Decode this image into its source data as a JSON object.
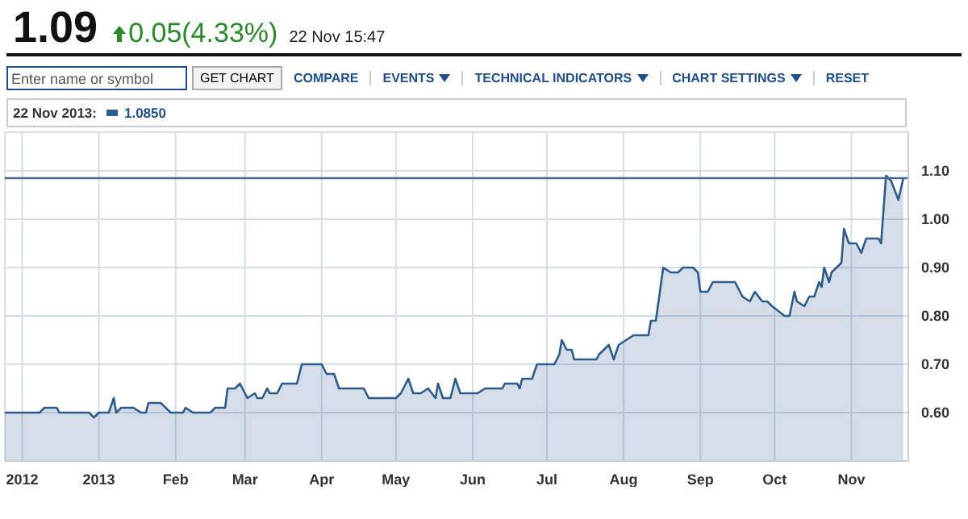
{
  "chart_data": {
    "type": "area",
    "title": "1.09",
    "subtitle": "0.05(4.33%)",
    "annotations": [
      "22 Nov 15:47",
      "Enter name or symbol",
      "GET CHART",
      "COMPARE",
      "EVENTS",
      "TECHNICAL INDICATORS",
      "CHART SETTINGS",
      "RESET",
      "22 Nov 2013:",
      "1.0850"
    ],
    "x": [
      "2012-11-24",
      "2012-12-07",
      "2012-12-08",
      "2012-12-10",
      "2012-12-15",
      "2012-12-16",
      "2012-12-28",
      "2012-12-30",
      "2013-01-01",
      "2013-01-05",
      "2013-01-07",
      "2013-01-08",
      "2013-01-10",
      "2013-01-15",
      "2013-01-18",
      "2013-01-20",
      "2013-01-21",
      "2013-01-26",
      "2013-01-30",
      "2013-02-04",
      "2013-02-05",
      "2013-02-08",
      "2013-02-15",
      "2013-02-17",
      "2013-02-21",
      "2013-02-22",
      "2013-02-25",
      "2013-02-27",
      "2013-03-02",
      "2013-03-05",
      "2013-03-06",
      "2013-03-08",
      "2013-03-10",
      "2013-03-11",
      "2013-03-14",
      "2013-03-16",
      "2013-03-22",
      "2013-03-24",
      "2013-04-01",
      "2013-04-03",
      "2013-04-06",
      "2013-04-08",
      "2013-04-18",
      "2013-04-20",
      "2013-05-01",
      "2013-05-03",
      "2013-05-06",
      "2013-05-08",
      "2013-05-11",
      "2013-05-14",
      "2013-05-17",
      "2013-05-18",
      "2013-05-20",
      "2013-05-23",
      "2013-05-25",
      "2013-05-27",
      "2013-06-03",
      "2013-06-06",
      "2013-06-13",
      "2013-06-14",
      "2013-06-19",
      "2013-06-20",
      "2013-06-21",
      "2013-06-25",
      "2013-06-27",
      "2013-07-04",
      "2013-07-06",
      "2013-07-07",
      "2013-07-09",
      "2013-07-11",
      "2013-07-12",
      "2013-07-16",
      "2013-07-21",
      "2013-07-22",
      "2013-07-26",
      "2013-07-28",
      "2013-07-30",
      "2013-08-05",
      "2013-08-11",
      "2013-08-12",
      "2013-08-14",
      "2013-08-17",
      "2013-08-20",
      "2013-08-23",
      "2013-08-25",
      "2013-08-29",
      "2013-08-31",
      "2013-09-01",
      "2013-09-04",
      "2013-09-06",
      "2013-09-15",
      "2013-09-18",
      "2013-09-21",
      "2013-09-23",
      "2013-09-26",
      "2013-09-28",
      "2013-09-30",
      "2013-10-05",
      "2013-10-07",
      "2013-10-09",
      "2013-10-10",
      "2013-10-13",
      "2013-10-15",
      "2013-10-17",
      "2013-10-19",
      "2013-10-20",
      "2013-10-21",
      "2013-10-23",
      "2013-10-24",
      "2013-10-28",
      "2013-10-29",
      "2013-10-31",
      "2013-11-03",
      "2013-11-05",
      "2013-11-07",
      "2013-11-12",
      "2013-11-13",
      "2013-11-15",
      "2013-11-17",
      "2013-11-20",
      "2013-11-22"
    ],
    "series": [
      {
        "color": "#2d5c8a",
        "values": [
          0.6,
          0.6,
          0.6,
          0.61,
          0.61,
          0.6,
          0.6,
          0.59,
          0.6,
          0.6,
          0.63,
          0.6,
          0.61,
          0.61,
          0.6,
          0.6,
          0.62,
          0.62,
          0.6,
          0.6,
          0.61,
          0.6,
          0.6,
          0.61,
          0.61,
          0.65,
          0.65,
          0.66,
          0.63,
          0.64,
          0.63,
          0.63,
          0.65,
          0.64,
          0.64,
          0.66,
          0.66,
          0.7,
          0.7,
          0.68,
          0.68,
          0.65,
          0.65,
          0.63,
          0.63,
          0.64,
          0.67,
          0.64,
          0.64,
          0.65,
          0.63,
          0.66,
          0.63,
          0.63,
          0.67,
          0.64,
          0.64,
          0.65,
          0.65,
          0.66,
          0.66,
          0.65,
          0.67,
          0.67,
          0.7,
          0.7,
          0.72,
          0.75,
          0.73,
          0.73,
          0.71,
          0.71,
          0.71,
          0.72,
          0.74,
          0.71,
          0.74,
          0.76,
          0.76,
          0.79,
          0.79,
          0.9,
          0.89,
          0.89,
          0.9,
          0.9,
          0.89,
          0.85,
          0.85,
          0.87,
          0.87,
          0.84,
          0.83,
          0.85,
          0.83,
          0.83,
          0.82,
          0.8,
          0.8,
          0.85,
          0.83,
          0.82,
          0.84,
          0.84,
          0.87,
          0.86,
          0.9,
          0.87,
          0.89,
          0.91,
          0.98,
          0.95,
          0.95,
          0.93,
          0.96,
          0.96,
          0.95,
          1.09,
          1.08,
          1.04,
          1.085
        ]
      }
    ],
    "xlim": [
      "2012-11-24",
      "2013-11-24"
    ],
    "xticks": [
      {
        "value": "2012-12-01",
        "label": "2012"
      },
      {
        "value": "2013-01-01",
        "label": "2013"
      },
      {
        "value": "2013-02-01",
        "label": "Feb"
      },
      {
        "value": "2013-03-01",
        "label": "Mar"
      },
      {
        "value": "2013-04-01",
        "label": "Apr"
      },
      {
        "value": "2013-05-01",
        "label": "May"
      },
      {
        "value": "2013-06-01",
        "label": "Jun"
      },
      {
        "value": "2013-07-01",
        "label": "Jul"
      },
      {
        "value": "2013-08-01",
        "label": "Aug"
      },
      {
        "value": "2013-09-01",
        "label": "Sep"
      },
      {
        "value": "2013-10-01",
        "label": "Oct"
      },
      {
        "value": "2013-11-01",
        "label": "Nov"
      }
    ],
    "ylim": [
      0.5,
      1.18
    ],
    "yticks": [
      {
        "value": 0.6,
        "label": "0.60"
      },
      {
        "value": 0.7,
        "label": "0.70"
      },
      {
        "value": 0.8,
        "label": "0.80"
      },
      {
        "value": 0.9,
        "label": "0.90"
      },
      {
        "value": 1.0,
        "label": "1.00"
      },
      {
        "value": 1.1,
        "label": "1.10"
      }
    ],
    "ref_lines": [
      {
        "axis": "y",
        "value": 1.085,
        "color": "#4a6e98"
      }
    ],
    "grid": true,
    "legend": false
  }
}
